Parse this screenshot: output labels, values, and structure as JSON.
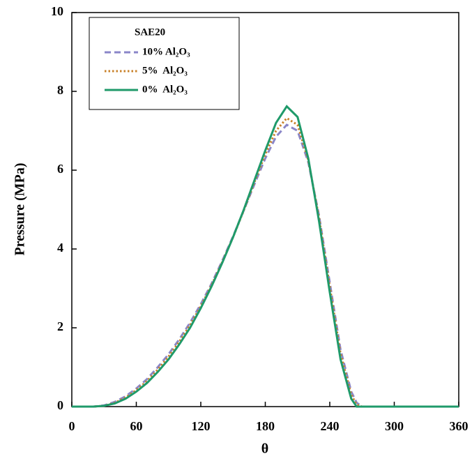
{
  "chart_data": {
    "type": "line",
    "xlabel": "θ",
    "ylabel": "Pressure (MPa)",
    "legend_title": "SAE20",
    "legend": "upper left",
    "x": [
      0,
      20,
      30,
      40,
      50,
      60,
      70,
      80,
      90,
      100,
      110,
      120,
      130,
      140,
      150,
      160,
      170,
      180,
      190,
      200,
      210,
      220,
      230,
      240,
      250,
      260,
      265,
      270,
      280,
      300,
      320,
      340,
      360
    ],
    "series": [
      {
        "name": "10% Al₂O₃",
        "color": "#8a86c8",
        "dash": "dashed",
        "values": [
          0,
          0,
          0.03,
          0.12,
          0.26,
          0.46,
          0.7,
          1.0,
          1.33,
          1.71,
          2.13,
          2.6,
          3.12,
          3.7,
          4.32,
          4.98,
          5.65,
          6.3,
          6.85,
          7.15,
          7.0,
          6.2,
          4.85,
          3.15,
          1.45,
          0.38,
          0.1,
          0,
          0,
          0,
          0,
          0,
          0
        ]
      },
      {
        "name": "5%  Al₂O₃",
        "color": "#c8822a",
        "dash": "dotted",
        "values": [
          0,
          0,
          0.02,
          0.1,
          0.23,
          0.42,
          0.65,
          0.94,
          1.27,
          1.65,
          2.07,
          2.55,
          3.08,
          3.67,
          4.3,
          4.98,
          5.7,
          6.4,
          7.0,
          7.32,
          7.15,
          6.25,
          4.8,
          3.05,
          1.35,
          0.3,
          0.05,
          0,
          0,
          0,
          0,
          0,
          0
        ]
      },
      {
        "name": "0%  Al₂O₃",
        "color": "#1f9a6a",
        "dash": "solid",
        "values": [
          0,
          0,
          0.02,
          0.08,
          0.2,
          0.38,
          0.6,
          0.88,
          1.2,
          1.58,
          2.0,
          2.5,
          3.05,
          3.65,
          4.3,
          5.0,
          5.75,
          6.5,
          7.2,
          7.62,
          7.35,
          6.3,
          4.7,
          2.9,
          1.2,
          0.2,
          0,
          0,
          0,
          0,
          0,
          0,
          0
        ]
      }
    ],
    "xlim": [
      0,
      360
    ],
    "xticks": [
      0,
      60,
      120,
      180,
      240,
      300,
      360
    ],
    "ylim": [
      0,
      10
    ],
    "yticks": [
      0,
      2,
      4,
      6,
      8,
      10
    ]
  }
}
